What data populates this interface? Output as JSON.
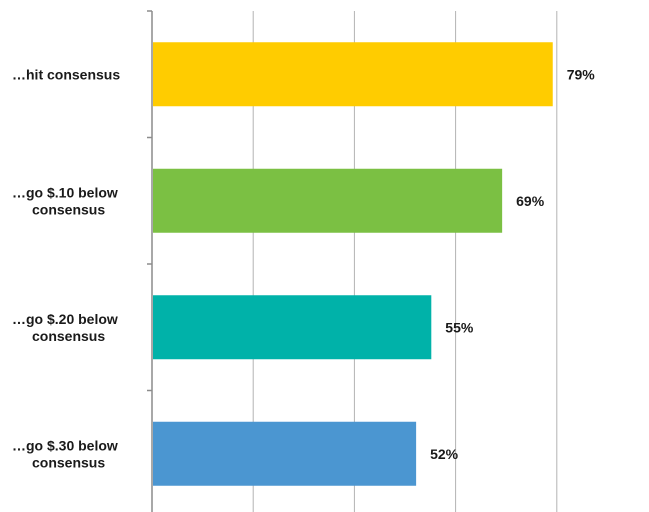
{
  "chart_data": {
    "type": "bar",
    "orientation": "horizontal",
    "categories": [
      [
        "…hit consensus"
      ],
      [
        "…go $.10 below",
        "consensus"
      ],
      [
        "…go $.20 below",
        "consensus"
      ],
      [
        "…go $.30 below",
        "consensus"
      ]
    ],
    "values": [
      79,
      69,
      55,
      52
    ],
    "data_labels": [
      "79%",
      "69%",
      "55%",
      "52%"
    ],
    "colors": [
      "#ffcc00",
      "#7bc043",
      "#00b2a9",
      "#4b96d1"
    ],
    "xlim": [
      0,
      100
    ],
    "grid": "vertical",
    "legend": "none",
    "title": "",
    "xlabel": "",
    "ylabel": ""
  }
}
